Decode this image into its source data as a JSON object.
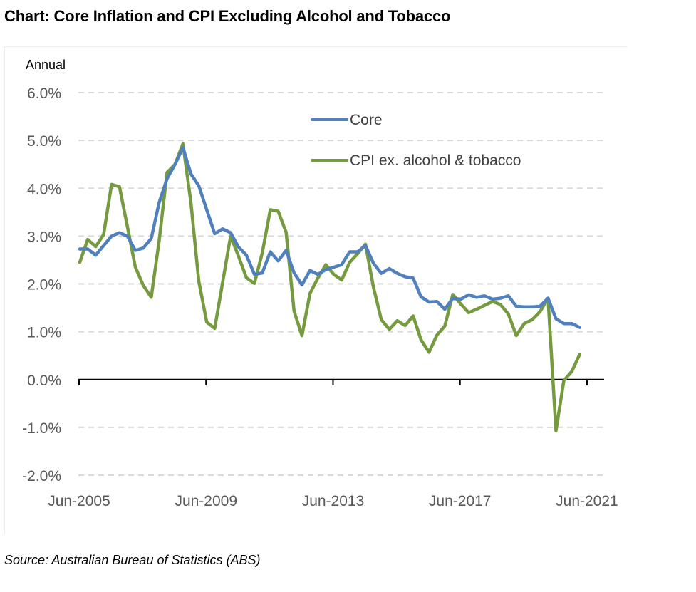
{
  "colors": {
    "core": "#5081BD",
    "cpi": "#759A3F",
    "grid": "#D9D9D9",
    "axis": "#000000",
    "tick_text": "#595959"
  },
  "chart_data": {
    "type": "line",
    "title": "Chart: Core Inflation and CPI Excluding Alcohol and Tobacco",
    "ylabel": "Annual",
    "xlabel": "",
    "ylim": [
      -2.0,
      6.0
    ],
    "yticks": [
      -2.0,
      -1.0,
      0.0,
      1.0,
      2.0,
      3.0,
      4.0,
      5.0,
      6.0
    ],
    "ytick_labels": [
      "-2.0%",
      "-1.0%",
      "0.0%",
      "1.0%",
      "2.0%",
      "3.0%",
      "4.0%",
      "5.0%",
      "6.0%"
    ],
    "xtick_labels": [
      "Jun-2005",
      "Jun-2009",
      "Jun-2013",
      "Jun-2017",
      "Jun-2021"
    ],
    "xtick_index": [
      0,
      16,
      32,
      48,
      64
    ],
    "grid": "horizontal dashed",
    "legend_position": "top-center",
    "x_start": "Jun-2005",
    "x_frequency": "quarterly",
    "series": [
      {
        "name": "Core",
        "color": "#5081BD",
        "values": [
          2.73,
          2.73,
          2.6,
          2.8,
          3.0,
          3.07,
          3.0,
          2.7,
          2.75,
          2.95,
          3.7,
          4.2,
          4.5,
          4.85,
          4.3,
          4.05,
          3.55,
          3.05,
          3.15,
          3.07,
          2.77,
          2.6,
          2.2,
          2.23,
          2.67,
          2.48,
          2.7,
          2.23,
          1.98,
          2.28,
          2.2,
          2.3,
          2.35,
          2.4,
          2.67,
          2.67,
          2.8,
          2.43,
          2.22,
          2.32,
          2.22,
          2.15,
          2.12,
          1.73,
          1.62,
          1.63,
          1.47,
          1.7,
          1.68,
          1.77,
          1.72,
          1.75,
          1.68,
          1.7,
          1.75,
          1.53,
          1.52,
          1.52,
          1.53,
          1.7,
          1.27,
          1.17,
          1.17,
          1.09
        ]
      },
      {
        "name": "CPI ex. alcohol & tobacco",
        "color": "#759A3F",
        "values": [
          2.45,
          2.93,
          2.78,
          3.03,
          4.08,
          4.03,
          3.2,
          2.35,
          1.97,
          1.72,
          2.9,
          4.33,
          4.5,
          4.93,
          3.7,
          2.05,
          1.2,
          1.07,
          2.03,
          3.0,
          2.58,
          2.13,
          2.01,
          2.65,
          3.55,
          3.52,
          3.08,
          1.43,
          0.92,
          1.8,
          2.12,
          2.4,
          2.2,
          2.08,
          2.45,
          2.63,
          2.83,
          1.93,
          1.25,
          1.05,
          1.23,
          1.13,
          1.33,
          0.83,
          0.57,
          0.93,
          1.12,
          1.78,
          1.58,
          1.4,
          1.47,
          1.55,
          1.63,
          1.57,
          1.37,
          0.92,
          1.17,
          1.25,
          1.42,
          1.7,
          -1.07,
          -0.02,
          0.17,
          0.53
        ]
      }
    ]
  },
  "source_text": "Source: Australian Bureau of Statistics (ABS)"
}
